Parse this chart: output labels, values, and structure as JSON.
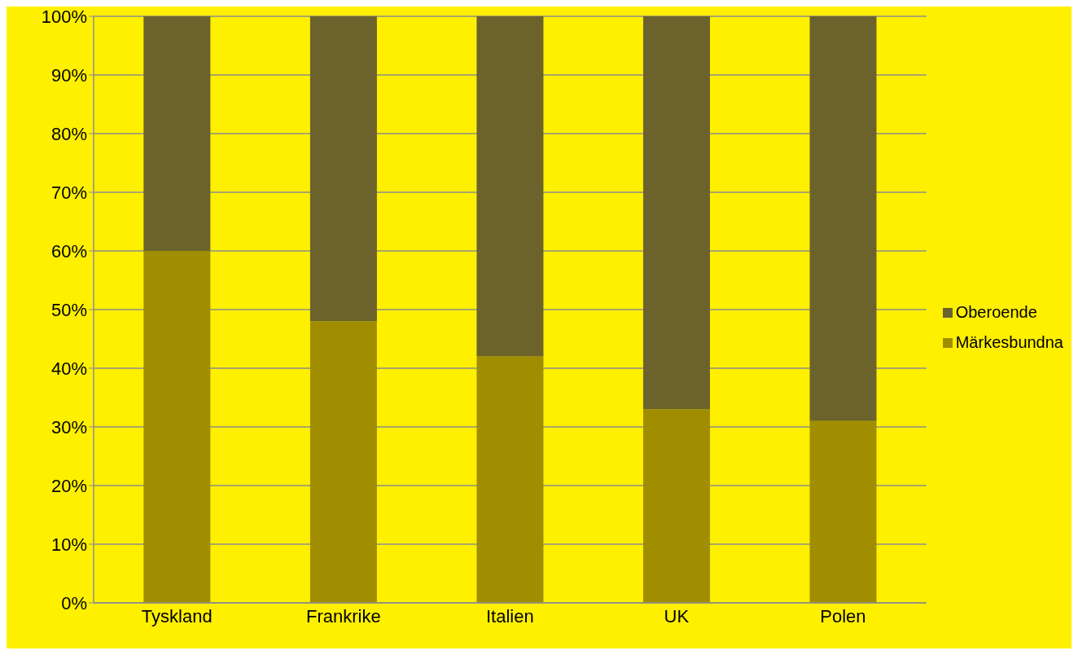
{
  "chart_data": {
    "type": "bar",
    "stacked": true,
    "categories": [
      "Tyskland",
      "Frankrike",
      "Italien",
      "UK",
      "Polen"
    ],
    "series": [
      {
        "name": "Märkesbundna",
        "color": "#a08e00",
        "values": [
          60,
          48,
          42,
          33,
          31
        ]
      },
      {
        "name": "Oberoende",
        "color": "#6b632b",
        "values": [
          40,
          52,
          58,
          67,
          69
        ]
      }
    ],
    "ylim": [
      0,
      100
    ],
    "yticks": [
      {
        "value": 0,
        "label": "0%"
      },
      {
        "value": 10,
        "label": "10%"
      },
      {
        "value": 20,
        "label": "20%"
      },
      {
        "value": 30,
        "label": "30%"
      },
      {
        "value": 40,
        "label": "40%"
      },
      {
        "value": 50,
        "label": "50%"
      },
      {
        "value": 60,
        "label": "60%"
      },
      {
        "value": 70,
        "label": "70%"
      },
      {
        "value": 80,
        "label": "80%"
      },
      {
        "value": 90,
        "label": "90%"
      },
      {
        "value": 100,
        "label": "100%"
      }
    ],
    "grid": "y",
    "legend": "right"
  }
}
